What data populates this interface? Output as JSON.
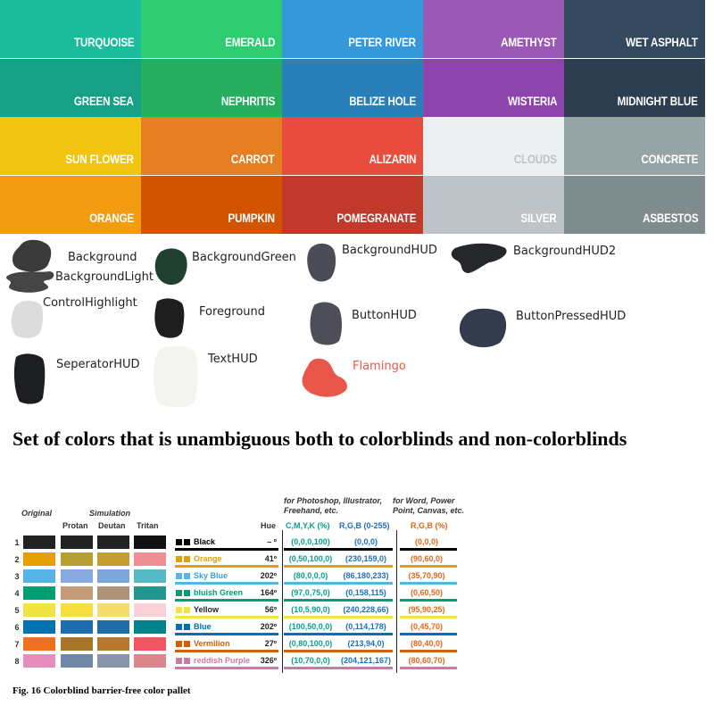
{
  "flat_palette": {
    "tiles": [
      {
        "name": "TURQUOISE",
        "color": "#1abc9c"
      },
      {
        "name": "EMERALD",
        "color": "#2ecc71"
      },
      {
        "name": "PETER RIVER",
        "color": "#3498db"
      },
      {
        "name": "AMETHYST",
        "color": "#9b59b6"
      },
      {
        "name": "WET ASPHALT",
        "color": "#34495e"
      },
      {
        "name": "GREEN SEA",
        "color": "#16a085"
      },
      {
        "name": "NEPHRITIS",
        "color": "#27ae60"
      },
      {
        "name": "BELIZE HOLE",
        "color": "#2980b9"
      },
      {
        "name": "WISTERIA",
        "color": "#8e44ad"
      },
      {
        "name": "MIDNIGHT BLUE",
        "color": "#2c3e50"
      },
      {
        "name": "SUN FLOWER",
        "color": "#f1c40f"
      },
      {
        "name": "CARROT",
        "color": "#e67e22"
      },
      {
        "name": "ALIZARIN",
        "color": "#e74c3c"
      },
      {
        "name": "CLOUDS",
        "color": "#ecf0f1"
      },
      {
        "name": "CONCRETE",
        "color": "#95a5a6"
      },
      {
        "name": "ORANGE",
        "color": "#f39c12"
      },
      {
        "name": "PUMPKIN",
        "color": "#d35400"
      },
      {
        "name": "POMEGRANATE",
        "color": "#c0392b"
      },
      {
        "name": "SILVER",
        "color": "#bdc3c7"
      },
      {
        "name": "ASBESTOS",
        "color": "#7f8c8d"
      }
    ]
  },
  "hud_swatches": {
    "background": {
      "label": "Background",
      "color": "#3a3a3a"
    },
    "background_light": {
      "label": "BackgroundLight",
      "color": "#454545"
    },
    "background_green": {
      "label": "BackgroundGreen",
      "color": "#22402f"
    },
    "background_hud": {
      "label": "BackgroundHUD",
      "color": "#4a4b55"
    },
    "background_hud2": {
      "label": "BackgroundHUD2",
      "color": "#26272b"
    },
    "control_highlight": {
      "label": "ControlHighlight",
      "color": "#dcdcdc"
    },
    "foreground": {
      "label": "Foreground",
      "color": "#1e1e1e"
    },
    "button_hud": {
      "label": "ButtonHUD",
      "color": "#4d4e58"
    },
    "button_pressed_hud": {
      "label": "ButtonPressedHUD",
      "color": "#333c4d"
    },
    "seperator_hud": {
      "label": "SeperatorHUD",
      "color": "#1d1e22"
    },
    "text_hud": {
      "label": "TextHUD",
      "color": "#f4f4f1"
    },
    "flamingo": {
      "label": "Flamingo",
      "color": "#e9574a"
    }
  },
  "heading": "Set of colors that is unambiguous both to colorblinds and non-colorblinds",
  "cb_table": {
    "header_original": "Original",
    "header_simulation": "Simulation",
    "header_protan": "Protan",
    "header_deutan": "Deutan",
    "header_tritan": "Tritan",
    "header_hue": "Hue",
    "header_photoshop": "for Photoshop, Illustrator, Freehand, etc.",
    "header_word": "for Word, Power Point, Canvas, etc.",
    "header_cmyk": "C,M,Y,K (%)",
    "header_rgb255": "R,G,B (0-255)",
    "header_rgbpct": "R,G,B (%)",
    "cmyk_color": "#0a9e8a",
    "rgb255_color": "#1d6fb8",
    "rgbpct_color": "#e0681a",
    "rows": [
      {
        "num": "1",
        "name": "Black",
        "name_color": "#000000",
        "hue": "– º",
        "cmyk": "(0,0,0,100)",
        "rgb255": "(0,0,0)",
        "rgbpct": "(0,0,0)",
        "swatch": "#000000",
        "original": "#222222",
        "protan": "#222222",
        "deutan": "#222222",
        "tritan": "#111111",
        "line": "#000000"
      },
      {
        "num": "2",
        "name": "Orange",
        "name_color": "#e69f00",
        "hue": "41º",
        "cmyk": "(0,50,100,0)",
        "rgb255": "(230,159,0)",
        "rgbpct": "(90,60,0)",
        "swatch": "#e69f00",
        "original": "#e69f00",
        "protan": "#b5a034",
        "deutan": "#c39d2d",
        "tritan": "#f08e95",
        "line": "#e69f00"
      },
      {
        "num": "3",
        "name": "Sky Blue",
        "name_color": "#3b9fd8",
        "hue": "202º",
        "cmyk": "(80,0,0,0)",
        "rgb255": "(86,180,233)",
        "rgbpct": "(35,70,90)",
        "swatch": "#56b4e9",
        "original": "#56b4e9",
        "protan": "#86a9df",
        "deutan": "#7ba7d9",
        "tritan": "#56b9c6",
        "line": "#56b4e9"
      },
      {
        "num": "4",
        "name": "bluish Green",
        "name_color": "#009e73",
        "hue": "164º",
        "cmyk": "(97,0,75,0)",
        "rgb255": "(0,158,115)",
        "rgbpct": "(0,60,50)",
        "swatch": "#009e73",
        "original": "#009e73",
        "protan": "#c59a78",
        "deutan": "#ad9377",
        "tritan": "#23978e",
        "line": "#009e73"
      },
      {
        "num": "5",
        "name": "Yellow",
        "name_color": "#222222",
        "hue": "56º",
        "cmyk": "(10,5,90,0)",
        "rgb255": "(240,228,66)",
        "rgbpct": "(95,90,25)",
        "swatch": "#f0e442",
        "original": "#f0e442",
        "protan": "#f5e03f",
        "deutan": "#f4dd6a",
        "tritan": "#fad1d7",
        "line": "#f0e442"
      },
      {
        "num": "6",
        "name": "Blue",
        "name_color": "#0072b2",
        "hue": "202º",
        "cmyk": "(100,50,0,0)",
        "rgb255": "(0,114,178)",
        "rgbpct": "(0,45,70)",
        "swatch": "#0072b2",
        "original": "#0072b2",
        "protan": "#1f6dac",
        "deutan": "#1e6da6",
        "tritan": "#00838c",
        "line": "#0072b2"
      },
      {
        "num": "7",
        "name": "Vermilion",
        "name_color": "#d55e00",
        "hue": "27º",
        "cmyk": "(0,80,100,0)",
        "rgb255": "(213,94,0)",
        "rgbpct": "(80,40,0)",
        "swatch": "#d55e00",
        "original": "#f17020",
        "protan": "#a87628",
        "deutan": "#b6782f",
        "tritan": "#f45562",
        "line": "#d55e00"
      },
      {
        "num": "8",
        "name": "reddish Purple",
        "name_color": "#cc79a7",
        "hue": "326º",
        "cmyk": "(10,70,0,0)",
        "rgb255": "(204,121,167)",
        "rgbpct": "(80,60,70)",
        "swatch": "#cc79a7",
        "original": "#e68dbb",
        "protan": "#7087a8",
        "deutan": "#8a94a8",
        "tritan": "#db858c",
        "line": "#cc79a7"
      }
    ]
  },
  "caption": "Fig. 16 Colorblind barrier-free color pallet"
}
